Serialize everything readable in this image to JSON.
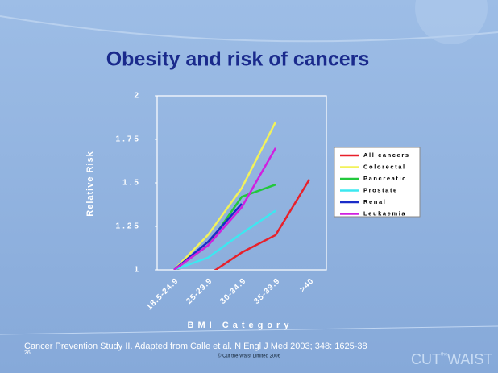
{
  "chart_data": {
    "type": "line",
    "title": "Obesity and risk of cancers",
    "y_label": "Relative Risk",
    "x_label": "BMI Category",
    "categories": [
      "18.5-24.9",
      "25-29.9",
      "30-34.9",
      "35-39.9",
      ">40"
    ],
    "ylim": [
      1,
      2
    ],
    "yticks": [
      1,
      1.25,
      1.5,
      1.75,
      2
    ],
    "series": [
      {
        "name": "All cancers",
        "color": "#e8202a",
        "values": [
          1,
          0.97,
          1.1,
          1.2,
          1.52
        ]
      },
      {
        "name": "Colorectal",
        "color": "#f2f25a",
        "values": [
          1,
          1.2,
          1.47,
          1.85,
          null
        ]
      },
      {
        "name": "Pancreatic",
        "color": "#22c83c",
        "values": [
          1,
          1.14,
          1.42,
          1.49,
          null
        ]
      },
      {
        "name": "Prostate",
        "color": "#3ce8f0",
        "values": [
          1,
          1.07,
          1.21,
          1.34,
          null
        ]
      },
      {
        "name": "Renal",
        "color": "#1a2cc8",
        "values": [
          1,
          1.16,
          1.38,
          null,
          null
        ]
      },
      {
        "name": "Leukaemia",
        "color": "#d020e0",
        "values": [
          1,
          1.14,
          1.36,
          1.7,
          null
        ]
      }
    ],
    "legend": "right"
  },
  "footer": {
    "source": "Cancer Prevention Study II. Adapted from Calle et al. N Engl J Med 2003; 348: 1625-38",
    "copyright": "© Cut the Waist Limited 2006",
    "slide_number": "26",
    "logo": [
      "CUT",
      "the",
      "WAIST"
    ]
  }
}
